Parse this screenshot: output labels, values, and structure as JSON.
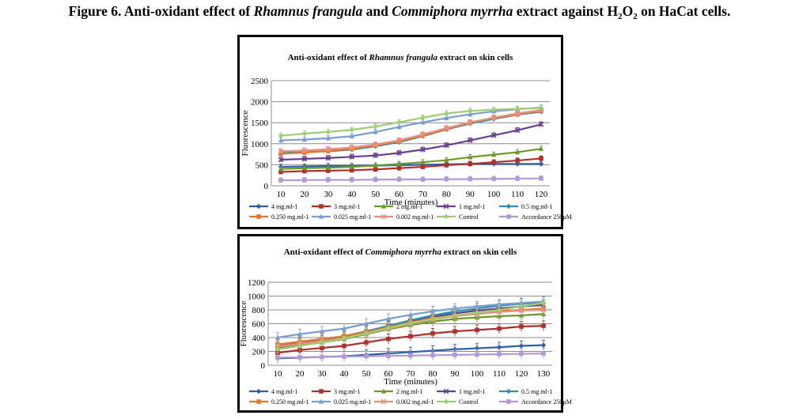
{
  "figure": {
    "prefix": "Figure 6. Anti-oxidant effect of ",
    "species1": "Rhamnus frangula",
    "mid": " and ",
    "species2": "Commiphora myrrha",
    "suffix_a": " extract against H",
    "sub1": "2",
    "suffix_b": "O",
    "sub2": "2",
    "suffix_c": " on HaCat cells."
  },
  "legend_labels": [
    "4 mg.ml-1",
    "3 mg.ml-1",
    "2 mg.ml-1",
    "1 mg.ml-1",
    "0.5 mg.ml-1",
    "0.250 mg.ml-1",
    "0.025 mg.ml-1",
    "0.002 mg.ml-1",
    "Control",
    "Accordance 250µM"
  ],
  "series_colors": [
    "#2f5fa8",
    "#b0302c",
    "#6b9a2c",
    "#6a3f8e",
    "#2e8fb0",
    "#e8762a",
    "#7a9dd4",
    "#e89080",
    "#9ccf70",
    "#b49ad2"
  ],
  "chart_data": [
    {
      "type": "line",
      "title_prefix": "Anti-oxidant effect of ",
      "title_species": "Rhamnus frangula",
      "title_suffix": " extract on skin cells",
      "xlabel": "Time (minutes)",
      "ylabel": "Fluorescence",
      "x": [
        10,
        20,
        30,
        40,
        50,
        60,
        70,
        80,
        90,
        100,
        110,
        120
      ],
      "ylim": [
        0,
        2500
      ],
      "yticks": [
        0,
        500,
        1000,
        1500,
        2000,
        2500
      ],
      "grid": true,
      "legend_position": "bottom",
      "series": [
        {
          "name": "4 mg.ml-1",
          "values": [
            450,
            460,
            470,
            470,
            480,
            490,
            500,
            510,
            520,
            520,
            520,
            520
          ]
        },
        {
          "name": "3 mg.ml-1",
          "values": [
            330,
            350,
            360,
            370,
            390,
            420,
            450,
            490,
            520,
            560,
            600,
            650
          ]
        },
        {
          "name": "2 mg.ml-1",
          "values": [
            400,
            420,
            430,
            450,
            480,
            520,
            560,
            610,
            680,
            740,
            800,
            880
          ]
        },
        {
          "name": "1 mg.ml-1",
          "values": [
            620,
            640,
            660,
            690,
            720,
            780,
            860,
            960,
            1080,
            1200,
            1320,
            1460
          ]
        },
        {
          "name": "0.5 mg.ml-1",
          "values": [
            780,
            800,
            820,
            860,
            940,
            1040,
            1180,
            1340,
            1480,
            1590,
            1690,
            1760
          ]
        },
        {
          "name": "0.250 mg.ml-1",
          "values": [
            760,
            790,
            830,
            880,
            960,
            1060,
            1200,
            1350,
            1500,
            1610,
            1700,
            1780
          ]
        },
        {
          "name": "0.025 mg.ml-1",
          "values": [
            1080,
            1100,
            1130,
            1180,
            1280,
            1400,
            1510,
            1610,
            1700,
            1770,
            1820,
            1860
          ]
        },
        {
          "name": "0.002 mg.ml-1",
          "values": [
            820,
            840,
            870,
            910,
            980,
            1080,
            1220,
            1370,
            1510,
            1620,
            1720,
            1800
          ]
        },
        {
          "name": "Control",
          "values": [
            1190,
            1240,
            1280,
            1330,
            1410,
            1510,
            1620,
            1720,
            1780,
            1810,
            1830,
            1850
          ]
        },
        {
          "name": "Accordance 250µM",
          "values": [
            130,
            135,
            140,
            140,
            145,
            150,
            150,
            155,
            160,
            165,
            170,
            175
          ]
        }
      ]
    },
    {
      "type": "line",
      "title_prefix": "Anti-oxidant effect of ",
      "title_species": "Commiphora myrrha",
      "title_suffix": " extract on skin cells",
      "xlabel": "Time (minutes)",
      "ylabel": "Fluorescence",
      "x": [
        10,
        20,
        30,
        40,
        50,
        60,
        70,
        80,
        90,
        100,
        110,
        120,
        130
      ],
      "ylim": [
        0,
        1200
      ],
      "yticks": [
        0,
        200,
        400,
        600,
        800,
        1000,
        1200
      ],
      "grid": true,
      "legend_position": "bottom",
      "series": [
        {
          "name": "4 mg.ml-1",
          "values": [
            100,
            110,
            120,
            130,
            150,
            170,
            190,
            210,
            230,
            245,
            260,
            280,
            290
          ]
        },
        {
          "name": "3 mg.ml-1",
          "values": [
            180,
            220,
            250,
            280,
            330,
            380,
            420,
            460,
            490,
            510,
            530,
            560,
            570
          ]
        },
        {
          "name": "2 mg.ml-1",
          "values": [
            250,
            290,
            330,
            380,
            450,
            520,
            580,
            630,
            670,
            690,
            710,
            720,
            740
          ]
        },
        {
          "name": "1 mg.ml-1",
          "values": [
            280,
            320,
            360,
            410,
            480,
            560,
            640,
            700,
            750,
            790,
            820,
            850,
            870
          ]
        },
        {
          "name": "0.5 mg.ml-1",
          "values": [
            300,
            340,
            380,
            420,
            490,
            570,
            650,
            720,
            780,
            820,
            860,
            890,
            900
          ]
        },
        {
          "name": "0.250 mg.ml-1",
          "values": [
            300,
            340,
            380,
            420,
            480,
            550,
            620,
            680,
            720,
            750,
            780,
            800,
            820
          ]
        },
        {
          "name": "0.025 mg.ml-1",
          "values": [
            400,
            450,
            490,
            530,
            600,
            670,
            730,
            780,
            820,
            850,
            880,
            900,
            920
          ]
        },
        {
          "name": "0.002 mg.ml-1",
          "values": [
            270,
            310,
            350,
            390,
            460,
            530,
            600,
            660,
            710,
            740,
            770,
            790,
            800
          ]
        },
        {
          "name": "Control",
          "values": [
            230,
            280,
            330,
            390,
            460,
            540,
            610,
            670,
            720,
            760,
            800,
            850,
            900
          ]
        },
        {
          "name": "Accordance 250µM",
          "values": [
            110,
            115,
            120,
            125,
            130,
            135,
            140,
            145,
            150,
            155,
            160,
            165,
            170
          ]
        }
      ]
    }
  ]
}
